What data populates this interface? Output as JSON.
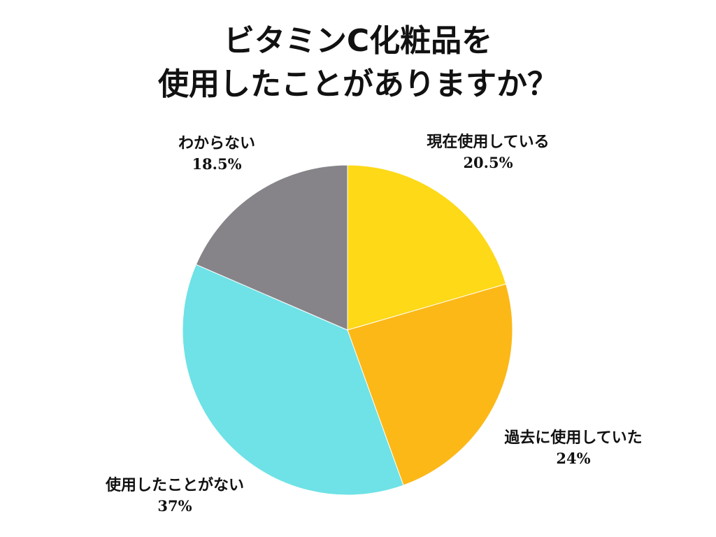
{
  "chart_data": {
    "type": "pie",
    "title_lines": [
      "ビタミンC化粧品を",
      "使用したことがありますか？"
    ],
    "start_angle_deg": 0,
    "direction": "clockwise",
    "slices": [
      {
        "label": "現在使用している",
        "value": 20.5,
        "value_text": "20.5%",
        "color": "#FDD917"
      },
      {
        "label": "過去に使用していた",
        "value": 24,
        "value_text": "24%",
        "color": "#FCB817"
      },
      {
        "label": "使用したことがない",
        "value": 37,
        "value_text": "37%",
        "color": "#6EE2E6"
      },
      {
        "label": "わからない",
        "value": 18.5,
        "value_text": "18.5%",
        "color": "#868489"
      }
    ]
  }
}
